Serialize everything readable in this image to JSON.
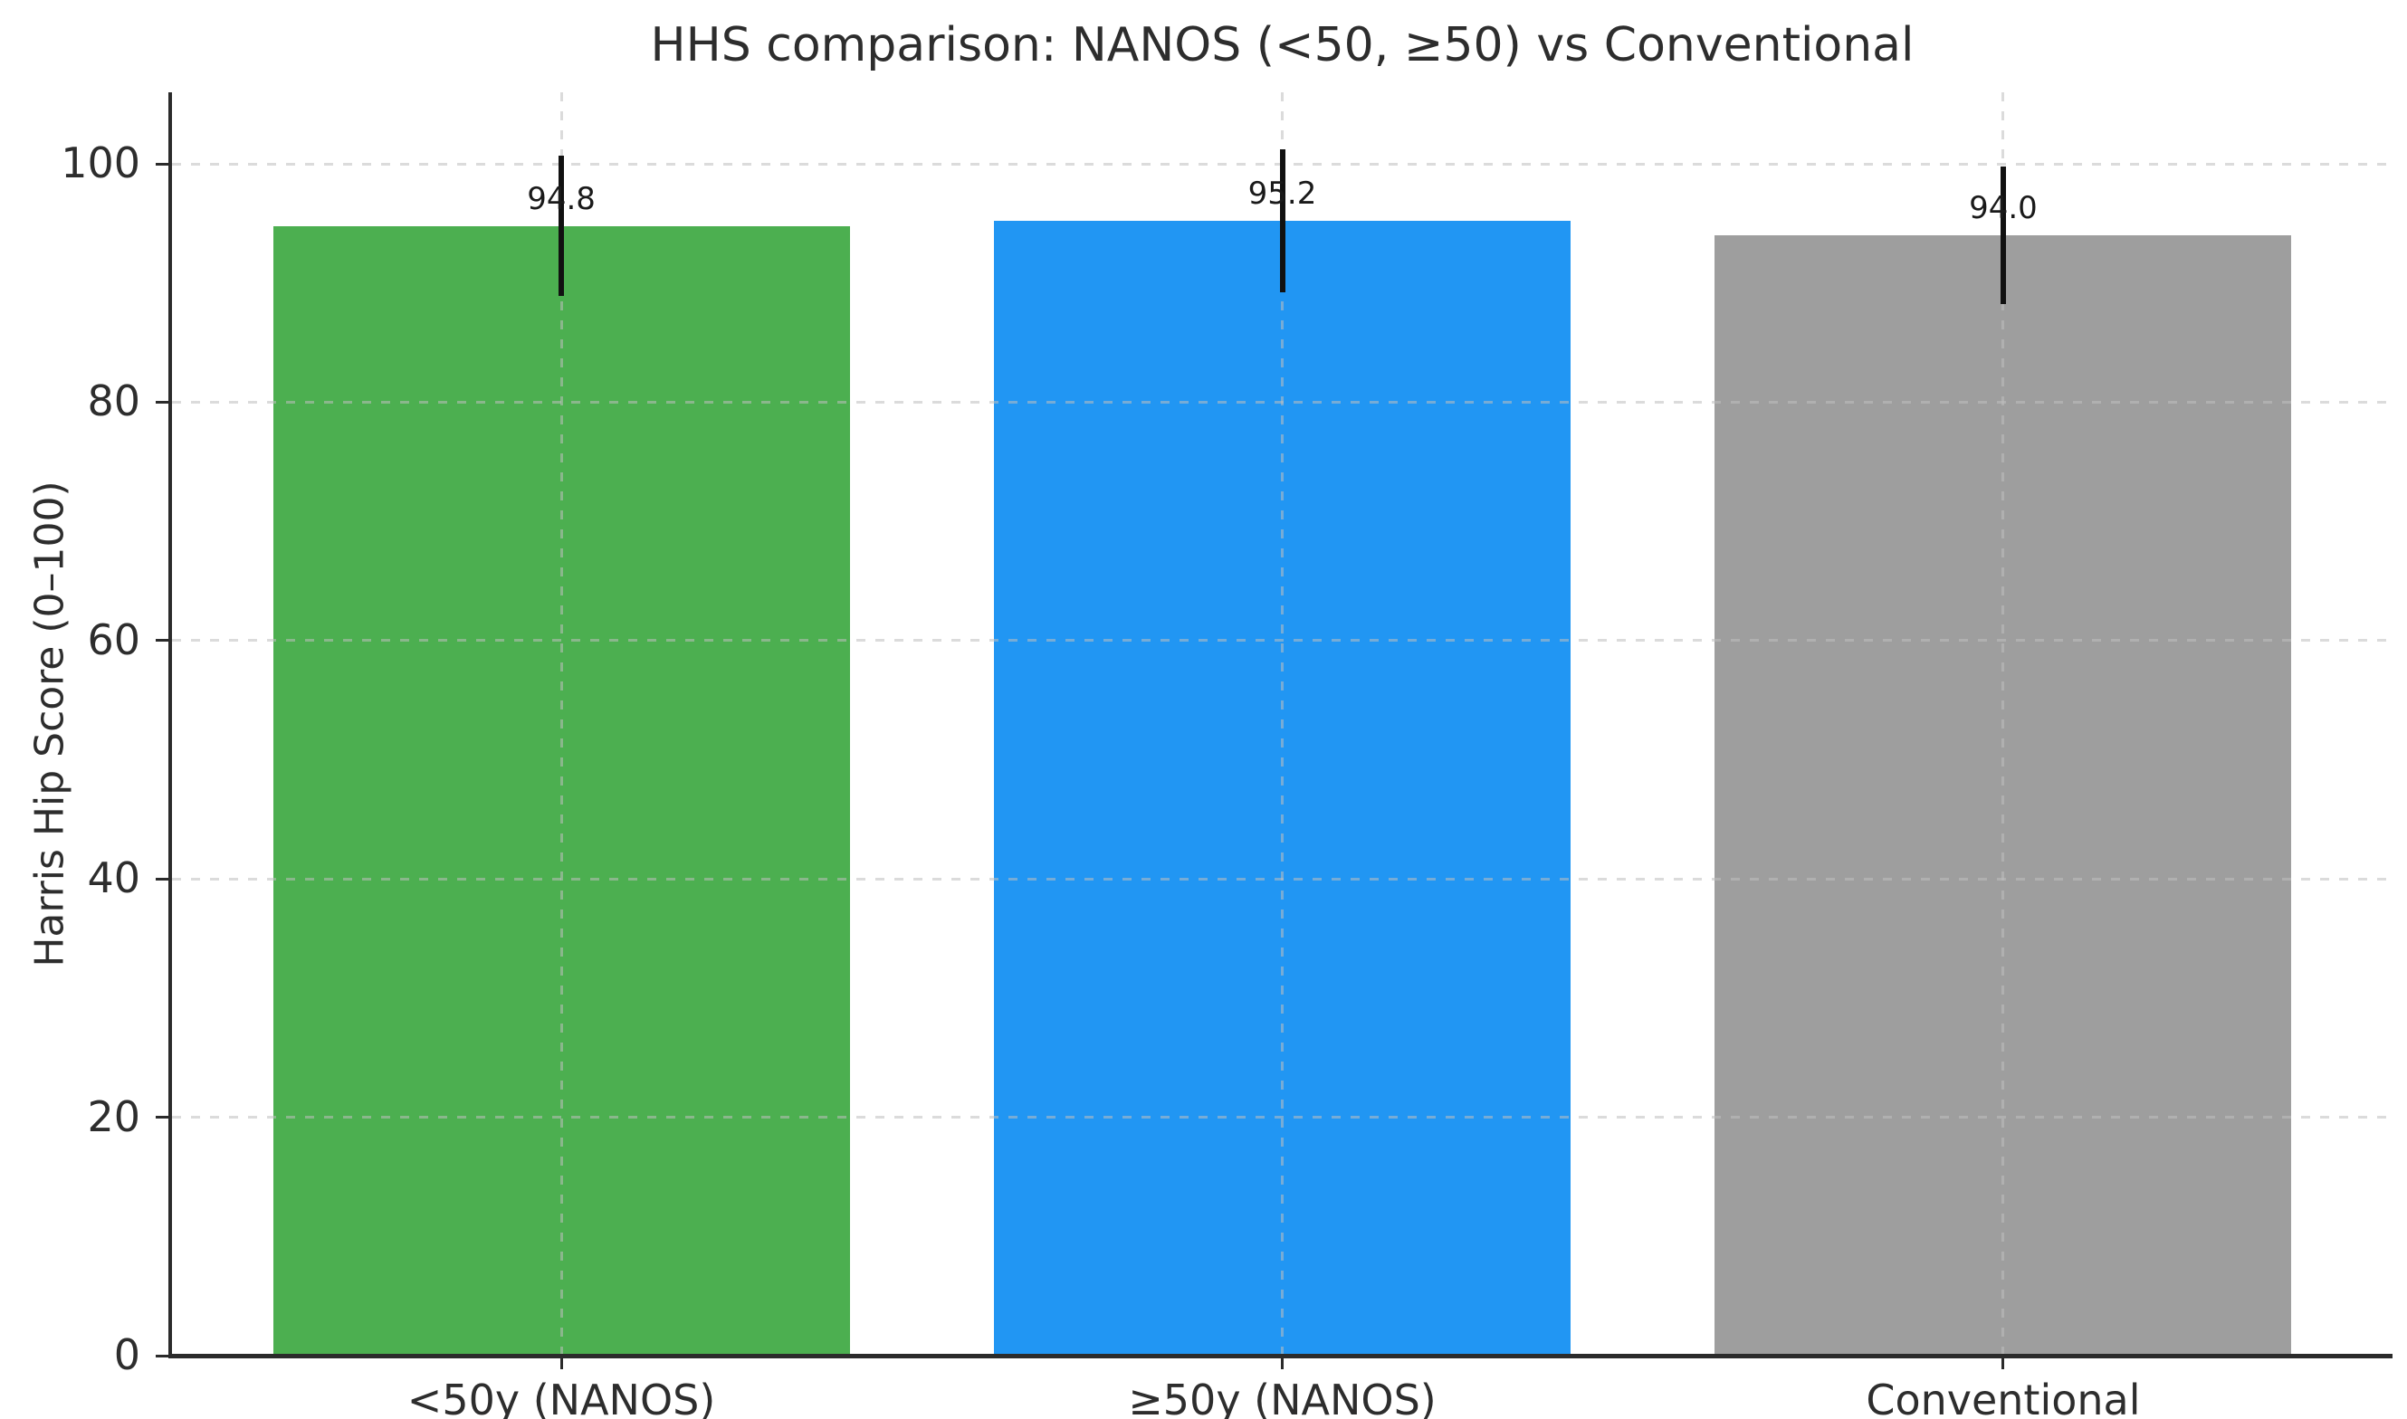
{
  "chart_data": {
    "type": "bar",
    "title": "HHS comparison: NANOS (<50, ≥50) vs Conventional",
    "xlabel": "",
    "ylabel": "Harris Hip Score (0–100)",
    "categories": [
      "<50y (NANOS)",
      "≥50y (NANOS)",
      "Conventional"
    ],
    "values": [
      94.8,
      95.2,
      94.0
    ],
    "value_labels": [
      "94.8",
      "95.2",
      "94.0"
    ],
    "errors": [
      5.9,
      6.0,
      5.8
    ],
    "bar_colors": [
      "#4CAF50",
      "#2196F3",
      "#9E9E9E"
    ],
    "yticks": [
      0,
      20,
      40,
      60,
      80,
      100
    ],
    "ylim": [
      0,
      106
    ],
    "bar_width_fraction": 0.8,
    "grid": {
      "style": "dashed",
      "color": "#dcdcdc",
      "horizontal": true,
      "vertical": true
    },
    "error_bar_color": "#111111",
    "background": "#ffffff",
    "legend_position": "none"
  }
}
